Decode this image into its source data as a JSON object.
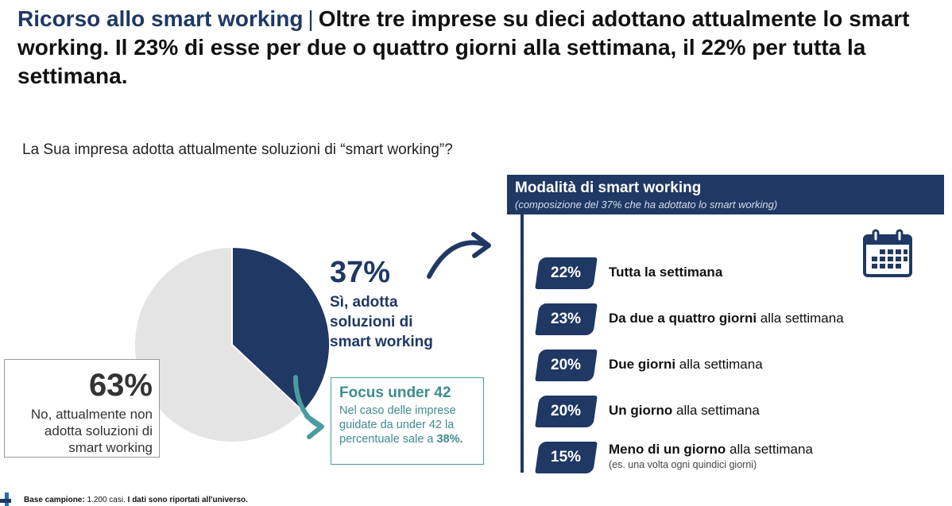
{
  "headline": {
    "kicker": "Ricorso allo smart working",
    "separator": "|",
    "text": "Oltre tre imprese su dieci adottano attualmente lo smart working. Il 23% di esse per due o quattro giorni alla settimana, il 22% per tutta la settimana."
  },
  "question": "La Sua impresa adotta attualmente soluzioni di “smart working”?",
  "chart_data": [
    {
      "type": "pie",
      "labels": [
        "Sì, adotta soluzioni di smart working",
        "No, attualmente non adotta soluzioni di smart working"
      ],
      "values": [
        37,
        63
      ],
      "colors": [
        "#1f3864",
        "#e4e4e4"
      ],
      "title": ""
    },
    {
      "type": "table",
      "title": "Modalità di smart working",
      "subtitle": "(composizione del 37% che ha adottato lo smart working)",
      "categories": [
        "Tutta la settimana",
        "Da due a quattro giorni alla settimana",
        "Due giorni alla settimana",
        "Un giorno alla settimana",
        "Meno di un giorno alla settimana"
      ],
      "values": [
        22,
        23,
        20,
        20,
        15
      ]
    }
  ],
  "yes": {
    "pct": "37%",
    "label": "Sì, adotta soluzioni di smart working"
  },
  "no": {
    "pct": "63%",
    "label": "No, attualmente non adotta soluzioni di smart working"
  },
  "focus": {
    "title": "Focus under 42",
    "text": "Nel caso delle imprese guidate da under 42 la percentuale sale a",
    "value": "38%."
  },
  "modes": {
    "title": "Modalità di smart working",
    "subtitle": "(composizione del 37% che ha adottato lo smart working)",
    "items": [
      {
        "pct": "22%",
        "bold": "Tutta la settimana",
        "rest": "",
        "note": ""
      },
      {
        "pct": "23%",
        "bold": "Da due a quattro giorni",
        "rest": " alla settimana",
        "note": ""
      },
      {
        "pct": "20%",
        "bold": "Due giorni",
        "rest": " alla settimana",
        "note": ""
      },
      {
        "pct": "20%",
        "bold": "Un giorno",
        "rest": " alla settimana",
        "note": ""
      },
      {
        "pct": "15%",
        "bold": "Meno di un giorno",
        "rest": " alla settimana",
        "note": "(es. una volta ogni quindici giorni)"
      }
    ]
  },
  "footer": {
    "label": "Base campione:",
    "count": "1.200 casi.",
    "note": "I dati sono riportati all'universo."
  },
  "icons": {
    "calendar": "calendar-icon",
    "arrow": "curved-arrow-icon"
  }
}
